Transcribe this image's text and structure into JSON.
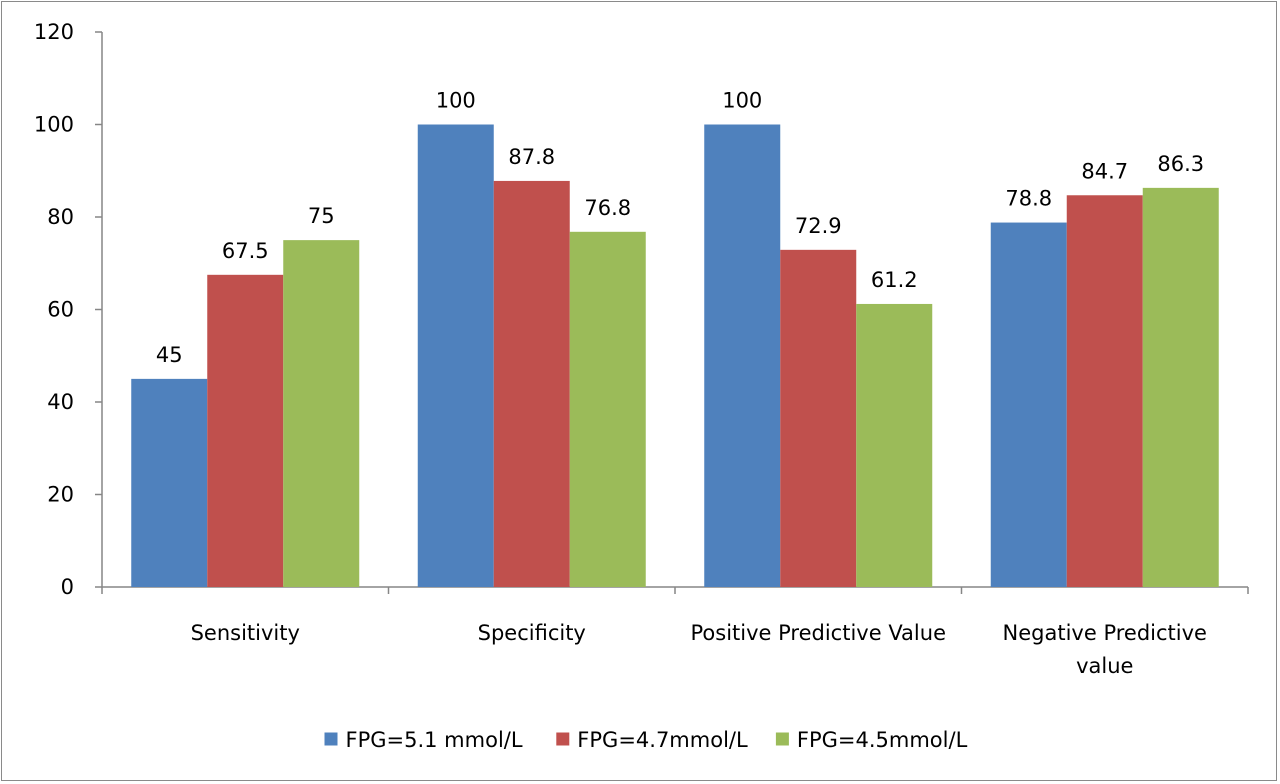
{
  "chart_data": {
    "type": "bar",
    "title": "",
    "xlabel": "",
    "ylabel": "",
    "ylim": [
      0,
      120
    ],
    "yticks": [
      0,
      20,
      40,
      60,
      80,
      100,
      120
    ],
    "grid": false,
    "legend_position": "bottom",
    "categories": [
      [
        "Sensitivity"
      ],
      [
        "Specificity"
      ],
      [
        "Positive Predictive Value"
      ],
      [
        "Negative Predictive",
        "value"
      ]
    ],
    "series": [
      {
        "name": "FPG=5.1 mmol/L",
        "color": "#4f81bd",
        "values": [
          45,
          100,
          100,
          78.8
        ],
        "labels": [
          "45",
          "100",
          "100",
          "78.8"
        ]
      },
      {
        "name": "FPG=4.7mmol/L",
        "color": "#c0504d",
        "values": [
          67.5,
          87.8,
          72.9,
          84.7
        ],
        "labels": [
          "67.5",
          "87.8",
          "72.9",
          "84.7"
        ]
      },
      {
        "name": "FPG=4.5mmol/L",
        "color": "#9bbb59",
        "values": [
          75,
          76.8,
          61.2,
          86.3
        ],
        "labels": [
          "75",
          "76.8",
          "61.2",
          "86.3"
        ]
      }
    ]
  }
}
